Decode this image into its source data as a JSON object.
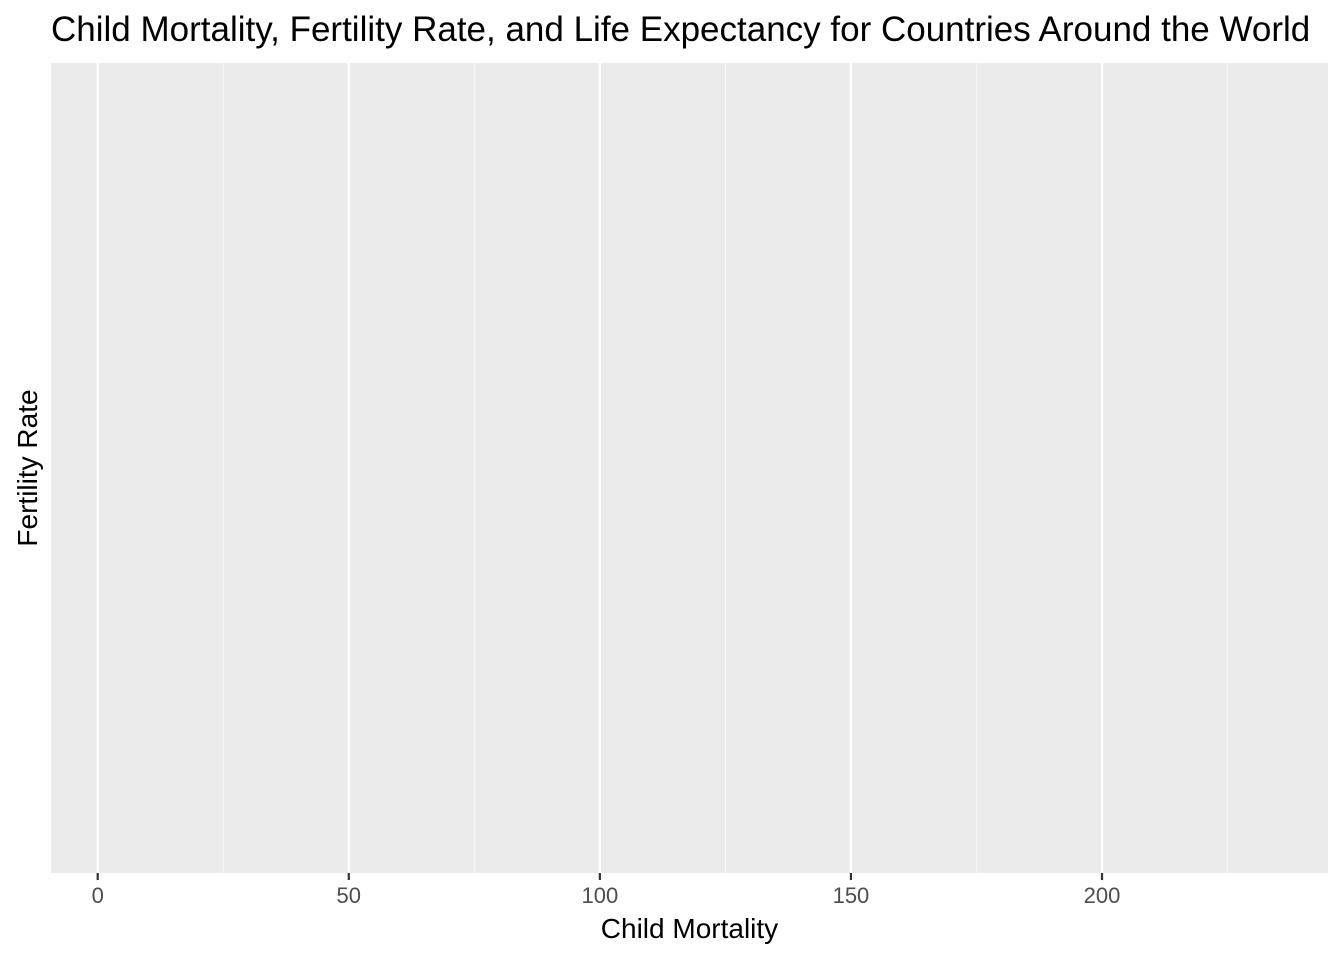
{
  "chart_data": {
    "type": "scatter",
    "title": "Child Mortality, Fertility Rate, and Life Expectancy for Countries Around the World",
    "xlabel": "Child Mortality",
    "ylabel": "Fertility Rate",
    "xlim": [
      -9.3,
      245
    ],
    "x_ticks": [
      0,
      50,
      100,
      150,
      200
    ],
    "x_tick_labels": [
      "0",
      "50",
      "100",
      "150",
      "200"
    ],
    "x_minor_ticks": [
      25,
      75,
      125,
      175,
      225
    ],
    "y_ticks": [],
    "grid": true,
    "legend": "none",
    "points": []
  },
  "colors": {
    "panel_background": "#ebebeb",
    "major_grid": "#ffffff",
    "minor_grid": "#f7f7f7",
    "tick_text": "#4d4d4d",
    "title_text": "#000000"
  }
}
